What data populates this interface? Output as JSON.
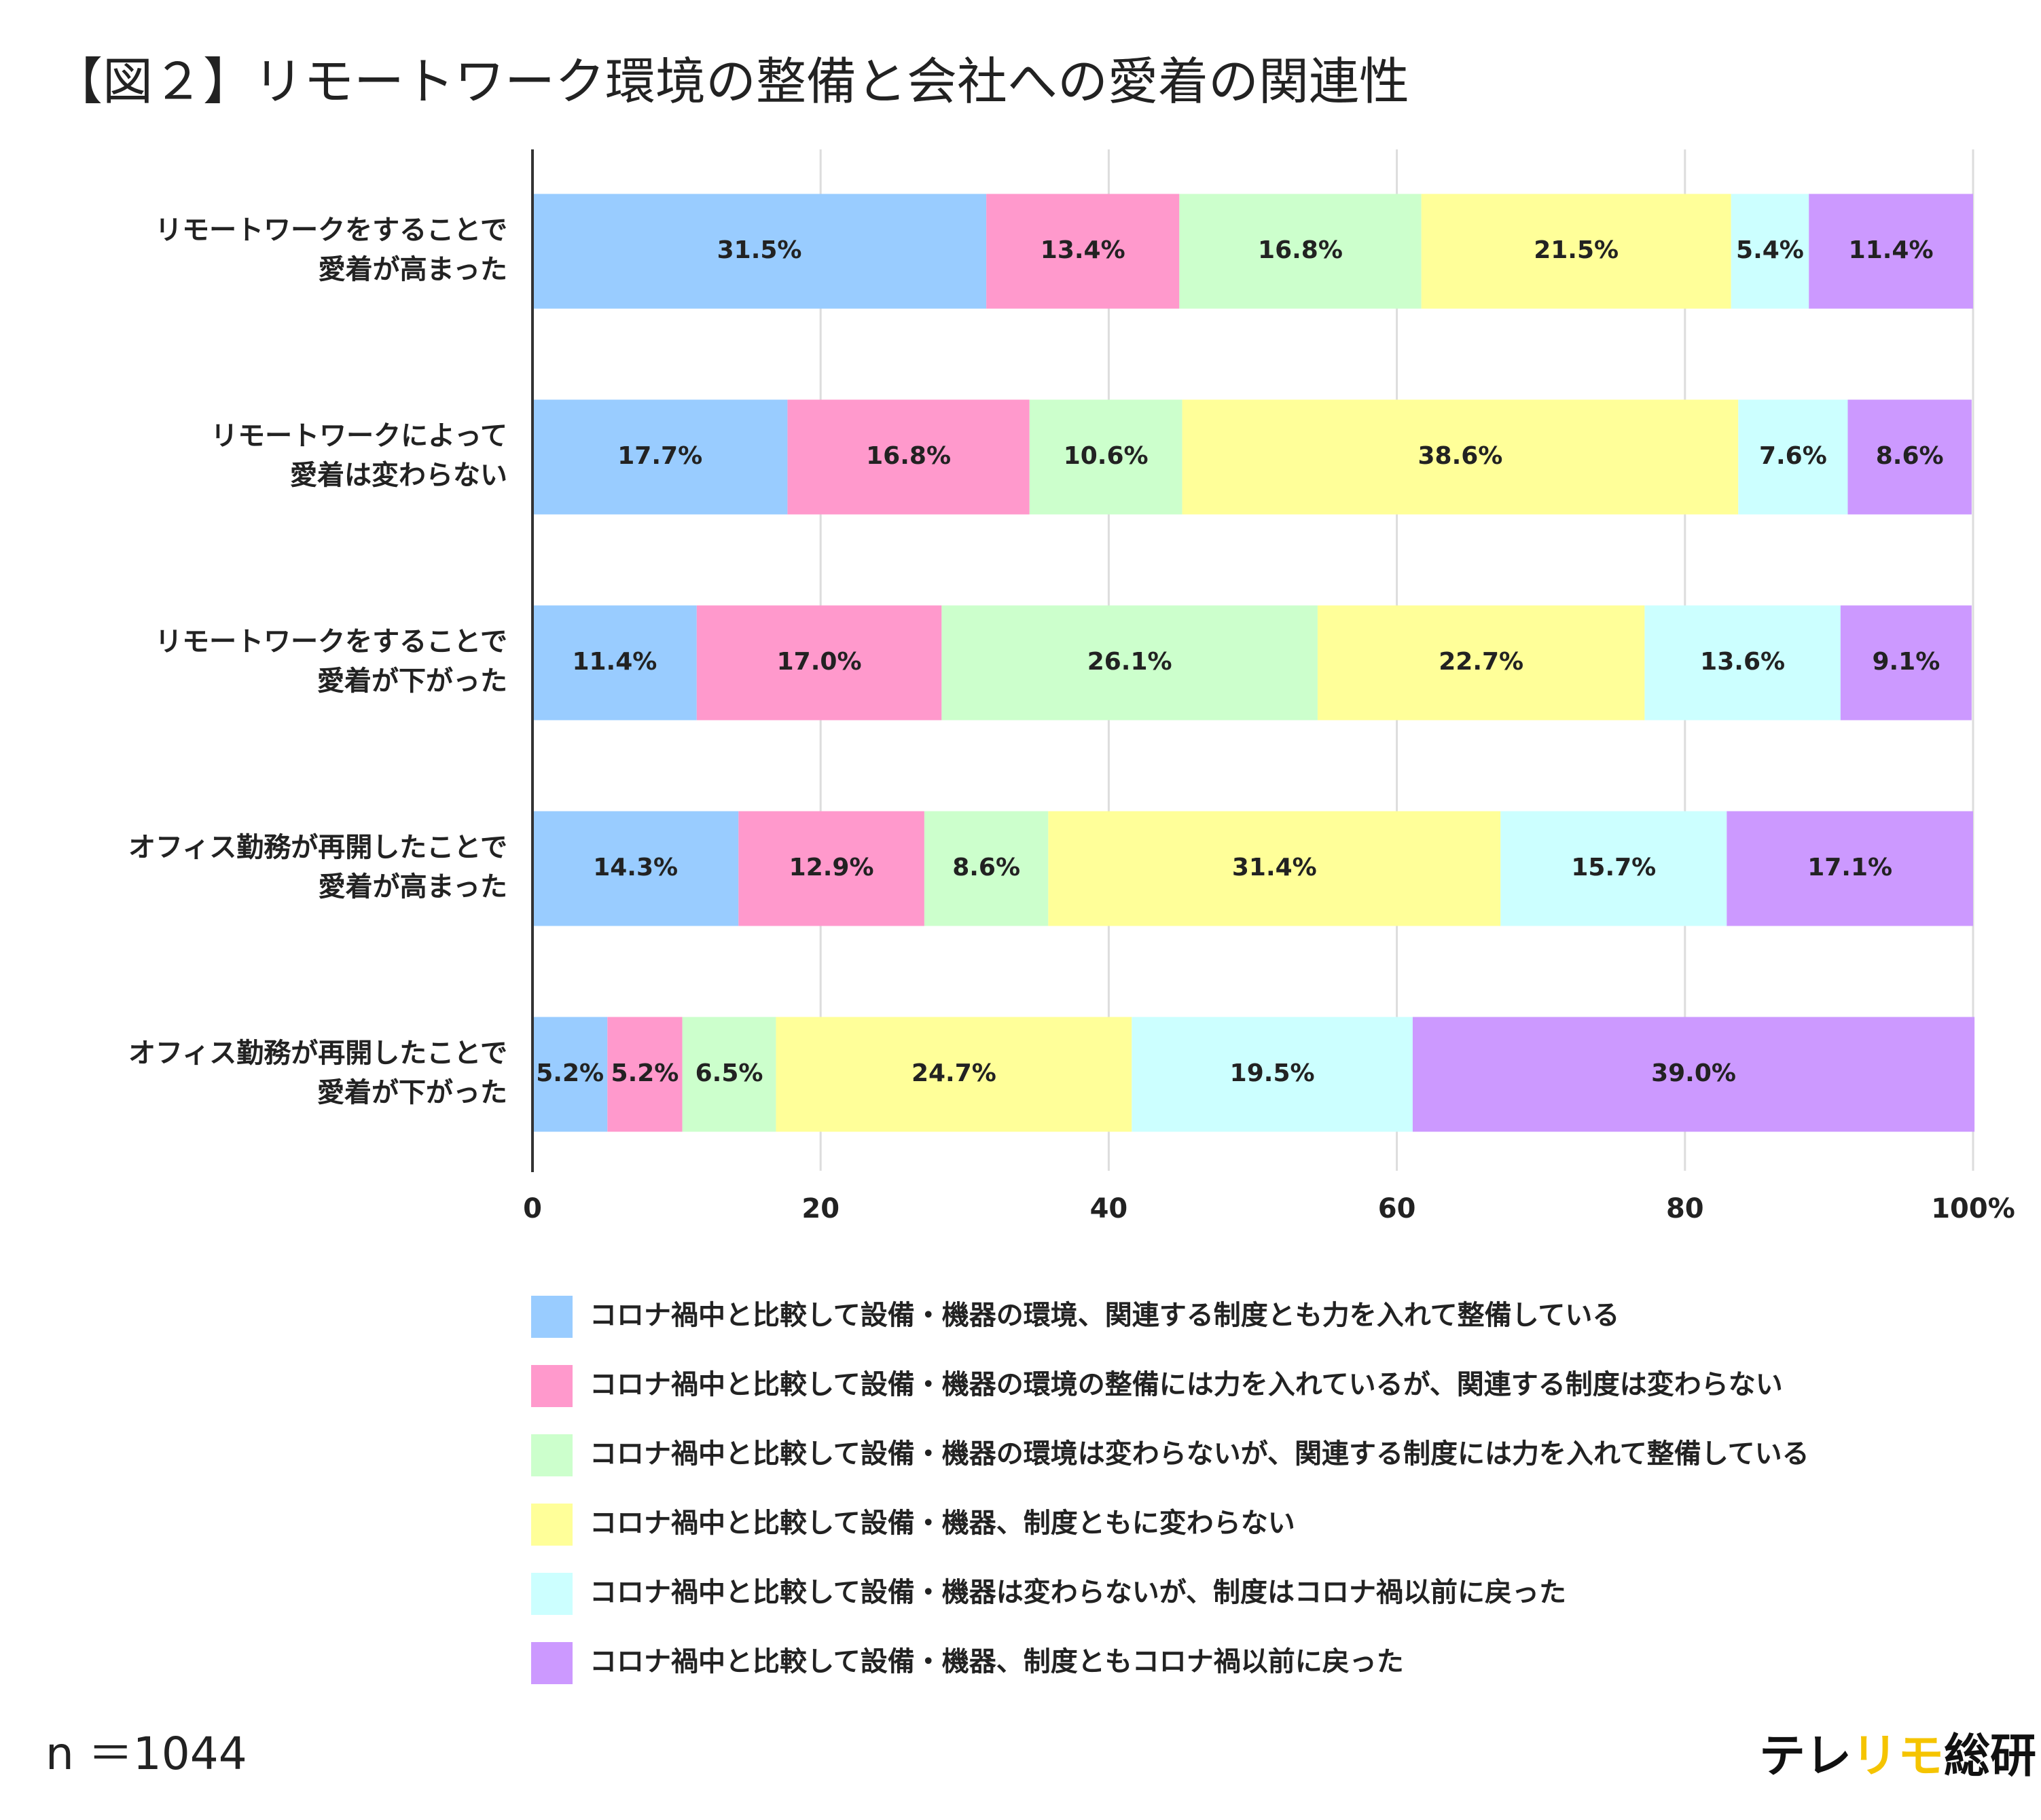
{
  "chart_data": {
    "type": "stacked-barh",
    "title": "【図２】リモートワーク環境の整備と会社への愛着の関連性",
    "categories": [
      [
        "リモートワークをすることで",
        "愛着が高まった"
      ],
      [
        "リモートワークによって",
        "愛着は変わらない"
      ],
      [
        "リモートワークをすることで",
        "愛着が下がった"
      ],
      [
        "オフィス勤務が再開したことで",
        "愛着が高まった"
      ],
      [
        "オフィス勤務が再開したことで",
        "愛着が下がった"
      ]
    ],
    "series": [
      {
        "name": "コロナ禍中と比較して設備・機器の環境、関連する制度とも力を入れて整備している",
        "color": "#99ccff",
        "values": [
          31.5,
          17.7,
          11.4,
          14.3,
          5.2
        ],
        "value_labels": [
          "31.5%",
          "17.7%",
          "11.4%",
          "14.3%",
          "5.2%"
        ]
      },
      {
        "name": "コロナ禍中と比較して設備・機器の環境の整備には力を入れているが、関連する制度は変わらない",
        "color": "#ff99cc",
        "values": [
          13.4,
          16.8,
          17.0,
          12.9,
          5.2
        ],
        "value_labels": [
          "13.4%",
          "16.8%",
          "17.0%",
          "12.9%",
          "5.2%"
        ]
      },
      {
        "name": "コロナ禍中と比較して設備・機器の環境は変わらないが、関連する制度には力を入れて整備している",
        "color": "#ccffcc",
        "values": [
          16.8,
          10.6,
          26.1,
          8.6,
          6.5
        ],
        "value_labels": [
          "16.8%",
          "10.6%",
          "26.1%",
          "8.6%",
          "6.5%"
        ]
      },
      {
        "name": "コロナ禍中と比較して設備・機器、制度ともに変わらない",
        "color": "#ffff99",
        "values": [
          21.5,
          38.6,
          22.7,
          31.4,
          24.7
        ],
        "value_labels": [
          "21.5%",
          "38.6%",
          "22.7%",
          "31.4%",
          "24.7%"
        ]
      },
      {
        "name": "コロナ禍中と比較して設備・機器は変わらないが、制度はコロナ禍以前に戻った",
        "color": "#ccffff",
        "values": [
          5.4,
          7.6,
          13.6,
          15.7,
          19.5
        ],
        "value_labels": [
          "5.4%",
          "7.6%",
          "13.6%",
          "15.7%",
          "19.5%"
        ]
      },
      {
        "name": "コロナ禍中と比較して設備・機器、制度ともコロナ禍以前に戻った",
        "color": "#cc99ff",
        "values": [
          11.4,
          8.6,
          9.1,
          17.1,
          39.0
        ],
        "value_labels": [
          "11.4%",
          "8.6%",
          "9.1%",
          "17.1%",
          "39.0%"
        ]
      }
    ],
    "xlim": [
      0,
      100
    ],
    "xticks": [
      0,
      20,
      40,
      60,
      80,
      {
        "value": 100,
        "label": "100%"
      }
    ],
    "grid": true,
    "legend": "bottom",
    "note": "n ＝1044",
    "logo": [
      "テレ",
      "リモ",
      "総研"
    ]
  }
}
